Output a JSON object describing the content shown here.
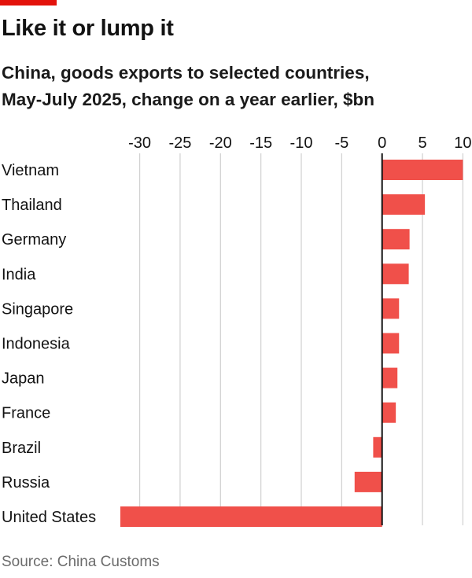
{
  "chart_data": {
    "type": "bar",
    "orientation": "horizontal",
    "title": "Like it or lump it",
    "subtitle": [
      "China, goods exports to selected countries,",
      "May-July 2025, change on a year earlier, $bn"
    ],
    "source": "Source: China Customs",
    "categories": [
      "Vietnam",
      "Thailand",
      "Germany",
      "India",
      "Singapore",
      "Indonesia",
      "Japan",
      "France",
      "Brazil",
      "Russia",
      "United States"
    ],
    "values": [
      10.0,
      5.3,
      3.4,
      3.3,
      2.1,
      2.1,
      1.9,
      1.7,
      -1.1,
      -3.4,
      -32.4
    ],
    "xticks": [
      -30,
      -25,
      -20,
      -15,
      -10,
      -5,
      0,
      5,
      10
    ],
    "xlim": [
      -32.4,
      10
    ],
    "xlabel": "",
    "ylabel": "",
    "grid": true,
    "colors": {
      "bar": "#f0504a",
      "tag": "#e3120b",
      "grid": "#d0d0d0"
    }
  }
}
